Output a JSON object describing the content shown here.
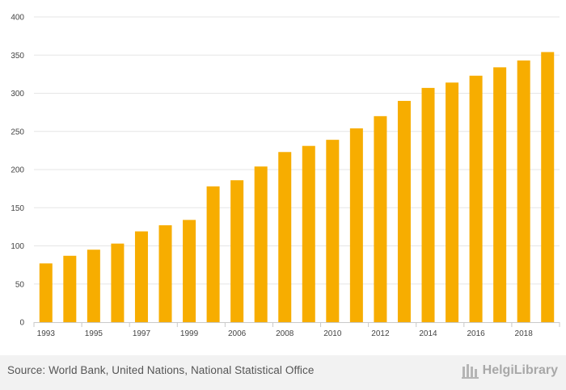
{
  "chart_data": {
    "type": "bar",
    "categories": [
      "1993",
      "1994",
      "1995",
      "1996",
      "1997",
      "1998",
      "1999",
      "2005",
      "2006",
      "2007",
      "2008",
      "2009",
      "2010",
      "2011",
      "2012",
      "2013",
      "2014",
      "2015",
      "2016",
      "2017",
      "2018",
      "2019"
    ],
    "x_tick_labels": [
      "1993",
      "1995",
      "1997",
      "1999",
      "2006",
      "2008",
      "2010",
      "2012",
      "2014",
      "2016",
      "2018"
    ],
    "values": [
      77,
      87,
      95,
      103,
      119,
      127,
      134,
      178,
      186,
      204,
      223,
      231,
      239,
      254,
      270,
      290,
      307,
      314,
      323,
      334,
      343,
      354
    ],
    "ylim": [
      0,
      400
    ],
    "yticks": [
      0,
      50,
      100,
      150,
      200,
      250,
      300,
      350,
      400
    ],
    "bar_color": "#f7ad00",
    "grid": true,
    "title": "",
    "xlabel": "",
    "ylabel": ""
  },
  "footer": {
    "source": "Source: World Bank, United Nations, National Statistical Office",
    "brand": "HelgiLibrary"
  }
}
